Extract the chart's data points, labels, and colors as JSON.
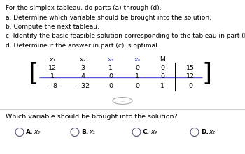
{
  "title_lines": [
    "For the simplex tableau, do parts (a) through (d).",
    "a. Determine which variable should be brought into the solution.",
    "b. Compute the next tableau.",
    "c. Identify the basic feasible solution corresponding to the tableau in part (b).",
    "d. Determine if the answer in part (c) is optimal."
  ],
  "col_headers": [
    "x₁",
    "x₂",
    "x₃",
    "x₄",
    "M"
  ],
  "col_header_colors": [
    "#000000",
    "#000000",
    "#4444cc",
    "#4444cc",
    "#000000"
  ],
  "matrix": [
    [
      "12",
      "3",
      "1",
      "0",
      "0",
      "15"
    ],
    [
      "1",
      "4",
      "0",
      "1",
      "0",
      "12"
    ],
    [
      "−8",
      "−32",
      "0",
      "0",
      "1",
      "0"
    ]
  ],
  "separator_after_row": 1,
  "question": "Which variable should be brought into the solution?",
  "choices": [
    {
      "label": "A.",
      "var": "x₃"
    },
    {
      "label": "B.",
      "var": "x₁"
    },
    {
      "label": "C.",
      "var": "x₄"
    },
    {
      "label": "D.",
      "var": "x₂"
    }
  ],
  "bg_color": "#ffffff",
  "text_color": "#000000",
  "separator_color": "#5555dd",
  "divider_color": "#cccccc",
  "bracket_color": "#000000",
  "vert_line_color": "#000000"
}
